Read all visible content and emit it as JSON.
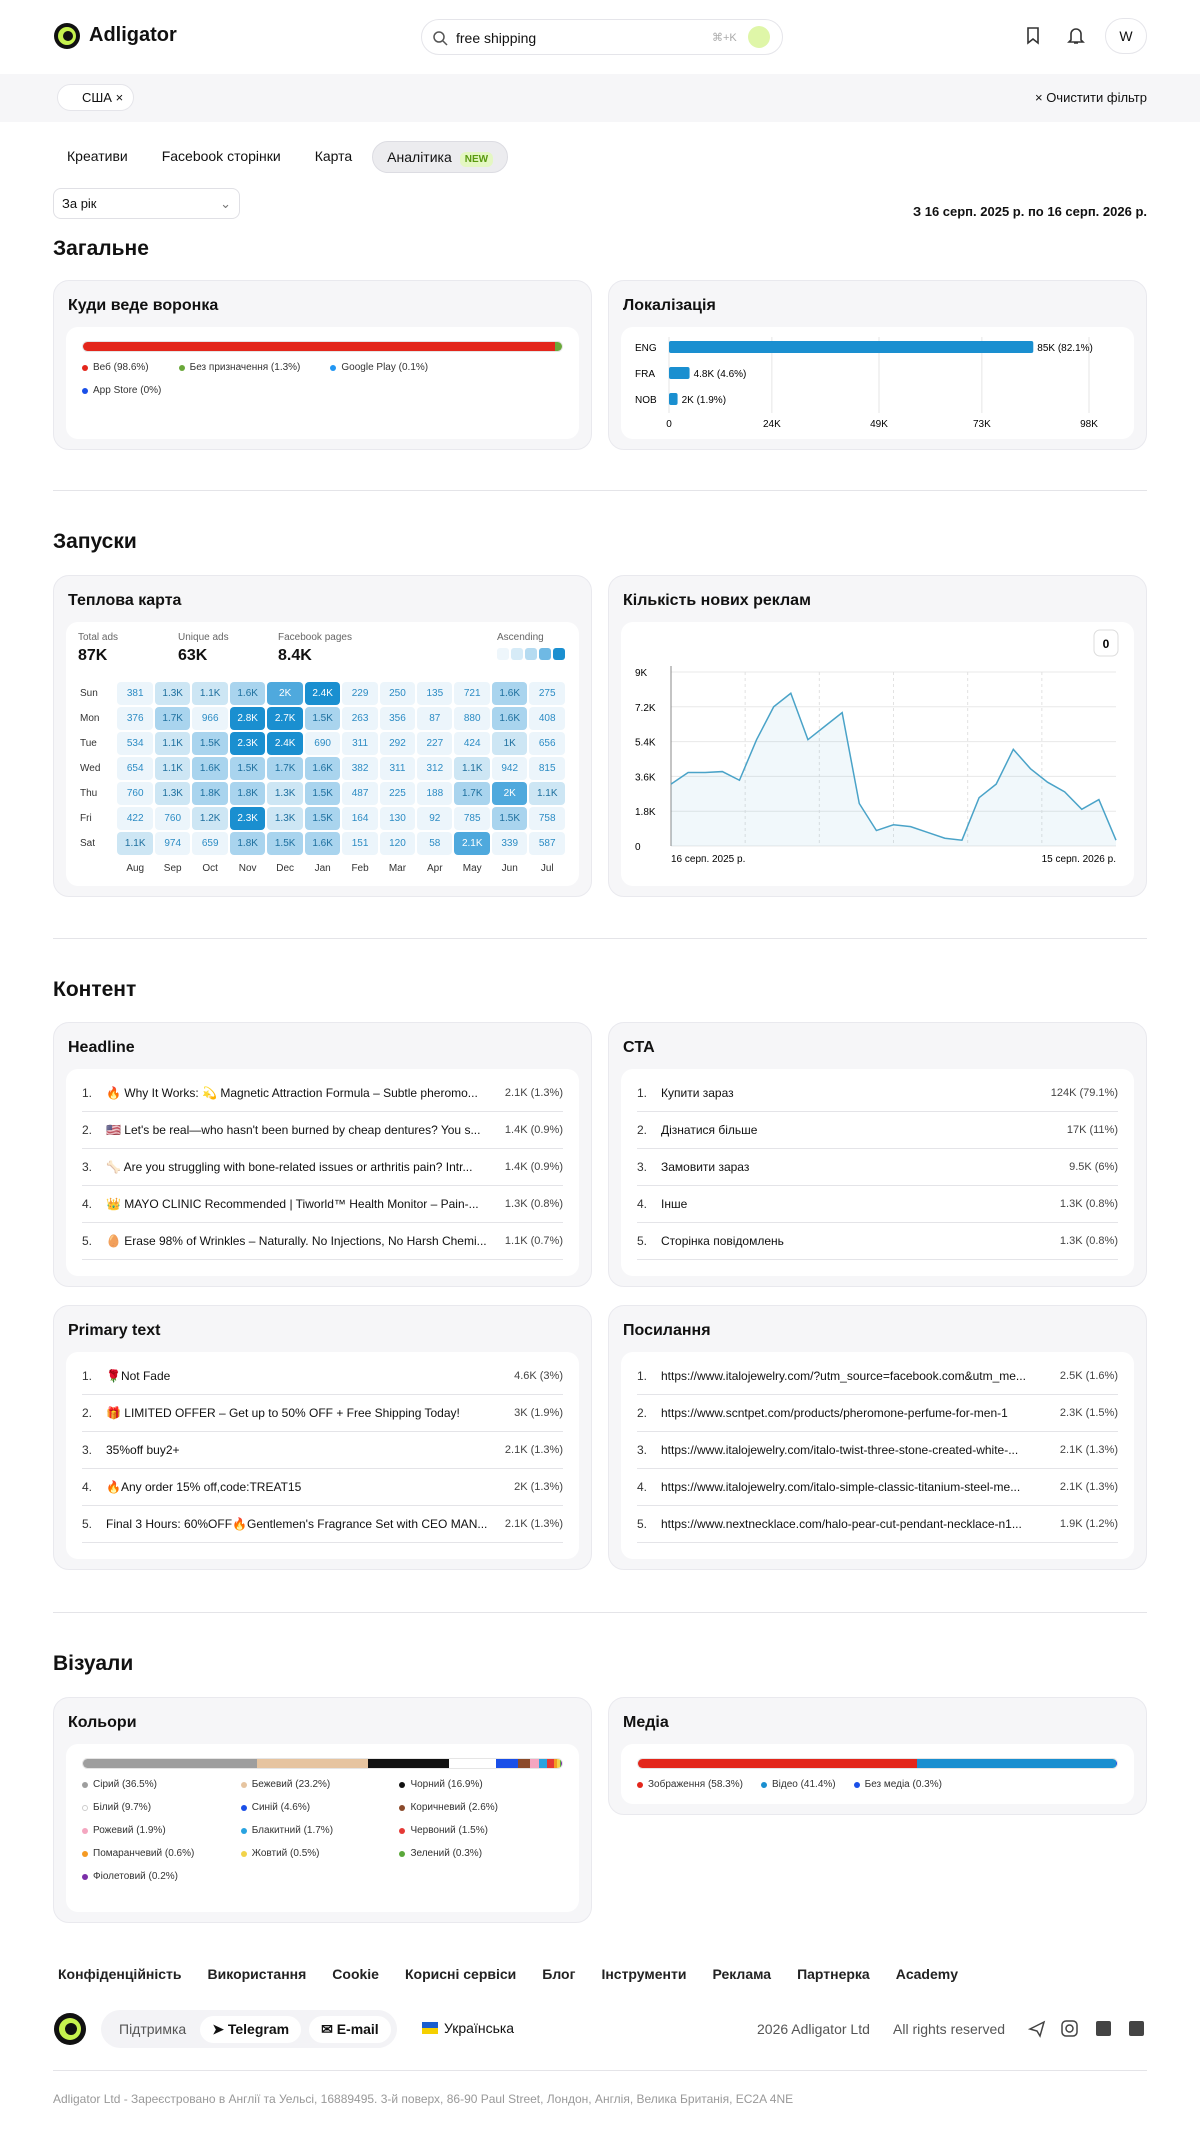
{
  "header": {
    "logo": "Adligator",
    "search": "free shipping",
    "shortcut": "⌘+K",
    "avatar": "W"
  },
  "filters": {
    "chip": "США",
    "clear": "Очистити фільтр"
  },
  "tabs": {
    "items": [
      "Креативи",
      "Facebook сторінки",
      "Карта",
      "Аналітика"
    ],
    "badge": "NEW"
  },
  "period": {
    "select": "За рік",
    "range": "З 16 серп. 2025 р. по 16 серп. 2026 р."
  },
  "general": {
    "title": "Загальне",
    "funnel": {
      "title": "Куди веде воронка",
      "segments": [
        {
          "label": "Веб (98.6%)",
          "value": 98.6,
          "color": "#e3261b"
        },
        {
          "label": "Без призначення (1.3%)",
          "value": 1.3,
          "color": "#6aa83a"
        },
        {
          "label": "Google Play (0.1%)",
          "value": 0.1,
          "color": "#2196f3"
        },
        {
          "label": "App Store (0%)",
          "value": 0,
          "color": "#1a4fe8"
        }
      ]
    },
    "localization": {
      "title": "Локалізація",
      "chart": {
        "type": "bar",
        "orientation": "horizontal",
        "categories": [
          "ENG",
          "FRA",
          "NOB"
        ],
        "values": [
          85000,
          4800,
          2000
        ],
        "value_labels": [
          "85K (82.1%)",
          "4.8K (4.6%)",
          "2K (1.9%)"
        ],
        "color": "#1a8fd0",
        "xlim": [
          0,
          98000
        ],
        "xticks": [
          0,
          {
            "value": 24000,
            "label": "24K"
          },
          {
            "value": 49000,
            "label": "49K"
          },
          {
            "value": 73000,
            "label": "73K"
          },
          {
            "value": 98000,
            "label": "98K"
          }
        ],
        "grid": true
      }
    }
  },
  "launches": {
    "title": "Запуски",
    "heatmap": {
      "title": "Теплова карта",
      "stats": [
        {
          "label": "Total ads",
          "value": "87K"
        },
        {
          "label": "Unique ads",
          "value": "63K"
        },
        {
          "label": "Facebook pages",
          "value": "8.4K"
        }
      ],
      "order": "Ascending",
      "days": [
        "Sun",
        "Mon",
        "Tue",
        "Wed",
        "Thu",
        "Fri",
        "Sat"
      ],
      "months": [
        "Aug",
        "Sep",
        "Oct",
        "Nov",
        "Dec",
        "Jan",
        "Feb",
        "Mar",
        "Apr",
        "May",
        "Jun",
        "Jul"
      ],
      "cells": [
        [
          "381",
          "1.3K",
          "1.1K",
          "1.6K",
          "2K",
          "2.4K",
          "229",
          "250",
          "135",
          "721",
          "1.6K",
          "275"
        ],
        [
          "376",
          "1.7K",
          "966",
          "2.8K",
          "2.7K",
          "1.5K",
          "263",
          "356",
          "87",
          "880",
          "1.6K",
          "408"
        ],
        [
          "534",
          "1.1K",
          "1.5K",
          "2.3K",
          "2.4K",
          "690",
          "311",
          "292",
          "227",
          "424",
          "1K",
          "656"
        ],
        [
          "654",
          "1.1K",
          "1.6K",
          "1.5K",
          "1.7K",
          "1.6K",
          "382",
          "311",
          "312",
          "1.1K",
          "942",
          "815"
        ],
        [
          "760",
          "1.3K",
          "1.8K",
          "1.8K",
          "1.3K",
          "1.5K",
          "487",
          "225",
          "188",
          "1.7K",
          "2K",
          "1.1K"
        ],
        [
          "422",
          "760",
          "1.2K",
          "2.3K",
          "1.3K",
          "1.5K",
          "164",
          "130",
          "92",
          "785",
          "1.5K",
          "758"
        ],
        [
          "1.1K",
          "974",
          "659",
          "1.8K",
          "1.5K",
          "1.6K",
          "151",
          "120",
          "58",
          "2.1K",
          "339",
          "587"
        ]
      ]
    },
    "new_ads": {
      "title": "Кількість нових реклам",
      "tooltip": "0",
      "chart": {
        "type": "line",
        "categories": [
          "16 серп. 2025 р.",
          null,
          null,
          null,
          null,
          null,
          null,
          null,
          null,
          null,
          null,
          null,
          null,
          null,
          null,
          null,
          null,
          null,
          null,
          null,
          null,
          null,
          null,
          null,
          null,
          null,
          "15 серп. 2026 р."
        ],
        "values": [
          3200,
          3800,
          3800,
          3850,
          3400,
          5500,
          7200,
          7900,
          5500,
          6200,
          6900,
          2200,
          800,
          1100,
          1000,
          700,
          400,
          300,
          2500,
          3200,
          5000,
          4000,
          3300,
          2800,
          1900,
          2400,
          300
        ],
        "color": "#4aa3c8",
        "ylim": [
          0,
          9000
        ],
        "yticks": [
          0,
          {
            "value": 1800,
            "label": "1.8K"
          },
          {
            "value": 3600,
            "label": "3.6K"
          },
          {
            "value": 5400,
            "label": "5.4K"
          },
          {
            "value": 7200,
            "label": "7.2K"
          },
          {
            "value": 9000,
            "label": "9K"
          }
        ],
        "grid": true
      }
    }
  },
  "content": {
    "title": "Контент",
    "lists": [
      {
        "title": "Headline",
        "items": [
          {
            "rank": "1.",
            "text": "🔥 Why It Works: 💫 Magnetic Attraction Formula – Subtle pheromo...",
            "value": "2.1K (1.3%)"
          },
          {
            "rank": "2.",
            "text": "🇺🇸 Let's be real—who hasn't been burned by cheap dentures? You s...",
            "value": "1.4K (0.9%)"
          },
          {
            "rank": "3.",
            "text": "🦴 Are you struggling with bone-related issues or arthritis pain? Intr...",
            "value": "1.4K (0.9%)"
          },
          {
            "rank": "4.",
            "text": "👑 MAYO CLINIC Recommended | Tiworld™ Health Monitor – Pain-...",
            "value": "1.3K (0.8%)"
          },
          {
            "rank": "5.",
            "text": "🥚 Erase 98% of Wrinkles – Naturally. No Injections, No Harsh Chemi...",
            "value": "1.1K (0.7%)"
          }
        ]
      },
      {
        "title": "CTA",
        "items": [
          {
            "rank": "1.",
            "text": "Купити зараз",
            "value": "124K (79.1%)"
          },
          {
            "rank": "2.",
            "text": "Дізнатися більше",
            "value": "17K (11%)"
          },
          {
            "rank": "3.",
            "text": "Замовити зараз",
            "value": "9.5K (6%)"
          },
          {
            "rank": "4.",
            "text": "Інше",
            "value": "1.3K (0.8%)"
          },
          {
            "rank": "5.",
            "text": "Сторінка повідомлень",
            "value": "1.3K (0.8%)"
          }
        ]
      },
      {
        "title": "Primary text",
        "items": [
          {
            "rank": "1.",
            "text": "🌹Not Fade",
            "value": "4.6K (3%)"
          },
          {
            "rank": "2.",
            "text": "🎁 LIMITED OFFER – Get up to 50% OFF + Free Shipping Today!",
            "value": "3K (1.9%)"
          },
          {
            "rank": "3.",
            "text": "35%off buy2+",
            "value": "2.1K (1.3%)"
          },
          {
            "rank": "4.",
            "text": "🔥Any order 15% off,code:TREAT15",
            "value": "2K (1.3%)"
          },
          {
            "rank": "5.",
            "text": "Final 3 Hours: 60%OFF🔥Gentlemen's Fragrance Set with CEO MAN...",
            "value": "2.1K (1.3%)"
          }
        ]
      },
      {
        "title": "Посилання",
        "items": [
          {
            "rank": "1.",
            "text": "https://www.italojewelry.com/?utm_source=facebook.com&utm_me...",
            "value": "2.5K (1.6%)"
          },
          {
            "rank": "2.",
            "text": "https://www.scntpet.com/products/pheromone-perfume-for-men-1",
            "value": "2.3K (1.5%)"
          },
          {
            "rank": "3.",
            "text": "https://www.italojewelry.com/italo-twist-three-stone-created-white-...",
            "value": "2.1K (1.3%)"
          },
          {
            "rank": "4.",
            "text": "https://www.italojewelry.com/italo-simple-classic-titanium-steel-me...",
            "value": "2.1K (1.3%)"
          },
          {
            "rank": "5.",
            "text": "https://www.nextnecklace.com/halo-pear-cut-pendant-necklace-n1...",
            "value": "1.9K (1.2%)"
          }
        ]
      }
    ]
  },
  "visuals": {
    "title": "Візуали",
    "colors": {
      "title": "Кольори",
      "segments": [
        {
          "label": "Сірий (36.5%)",
          "value": 36.5,
          "color": "#9e9e9e"
        },
        {
          "label": "Бежевий (23.2%)",
          "value": 23.2,
          "color": "#e6c4a0"
        },
        {
          "label": "Чорний (16.9%)",
          "value": 16.9,
          "color": "#111111"
        },
        {
          "label": "Білий (9.7%)",
          "value": 9.7,
          "color": "#ffffff"
        },
        {
          "label": "Синій (4.6%)",
          "value": 4.6,
          "color": "#1a4fe8"
        },
        {
          "label": "Коричневий (2.6%)",
          "value": 2.6,
          "color": "#8b4a2b"
        },
        {
          "label": "Рожевий (1.9%)",
          "value": 1.9,
          "color": "#f4a6c0"
        },
        {
          "label": "Блакитний (1.7%)",
          "value": 1.7,
          "color": "#29a3e0"
        },
        {
          "label": "Червоний (1.5%)",
          "value": 1.5,
          "color": "#e53935"
        },
        {
          "label": "Помаранчевий (0.6%)",
          "value": 0.6,
          "color": "#f59a23"
        },
        {
          "label": "Жовтий (0.5%)",
          "value": 0.5,
          "color": "#f2d34a"
        },
        {
          "label": "Зелений (0.3%)",
          "value": 0.3,
          "color": "#5aa83a"
        },
        {
          "label": "Фіолетовий (0.2%)",
          "value": 0.2,
          "color": "#7b2fa8"
        }
      ]
    },
    "media": {
      "title": "Медіа",
      "segments": [
        {
          "label": "Зображення (58.3%)",
          "value": 58.3,
          "color": "#e3261b"
        },
        {
          "label": "Відео (41.4%)",
          "value": 41.4,
          "color": "#1a8fd0"
        },
        {
          "label": "Без медіа (0.3%)",
          "value": 0.3,
          "color": "#1a4fe8"
        }
      ]
    }
  },
  "footer": {
    "links": [
      "Конфіденційність",
      "Використання",
      "Cookie",
      "Корисні сервіси",
      "Блог",
      "Інструменти",
      "Реклама",
      "Партнерка",
      "Academy"
    ],
    "support": {
      "label": "Підтримка",
      "telegram": "Telegram",
      "email": "E-mail"
    },
    "language": "Українська",
    "copyright": "2026 Adligator Ltd",
    "rights": "All rights reserved",
    "legal": "Adligator Ltd - Зареєстровано в Англії та Уельсі, 16889495. 3-й поверх, 86-90 Paul Street, Лондон, Англія, Велика Британія, EC2A 4NE"
  }
}
